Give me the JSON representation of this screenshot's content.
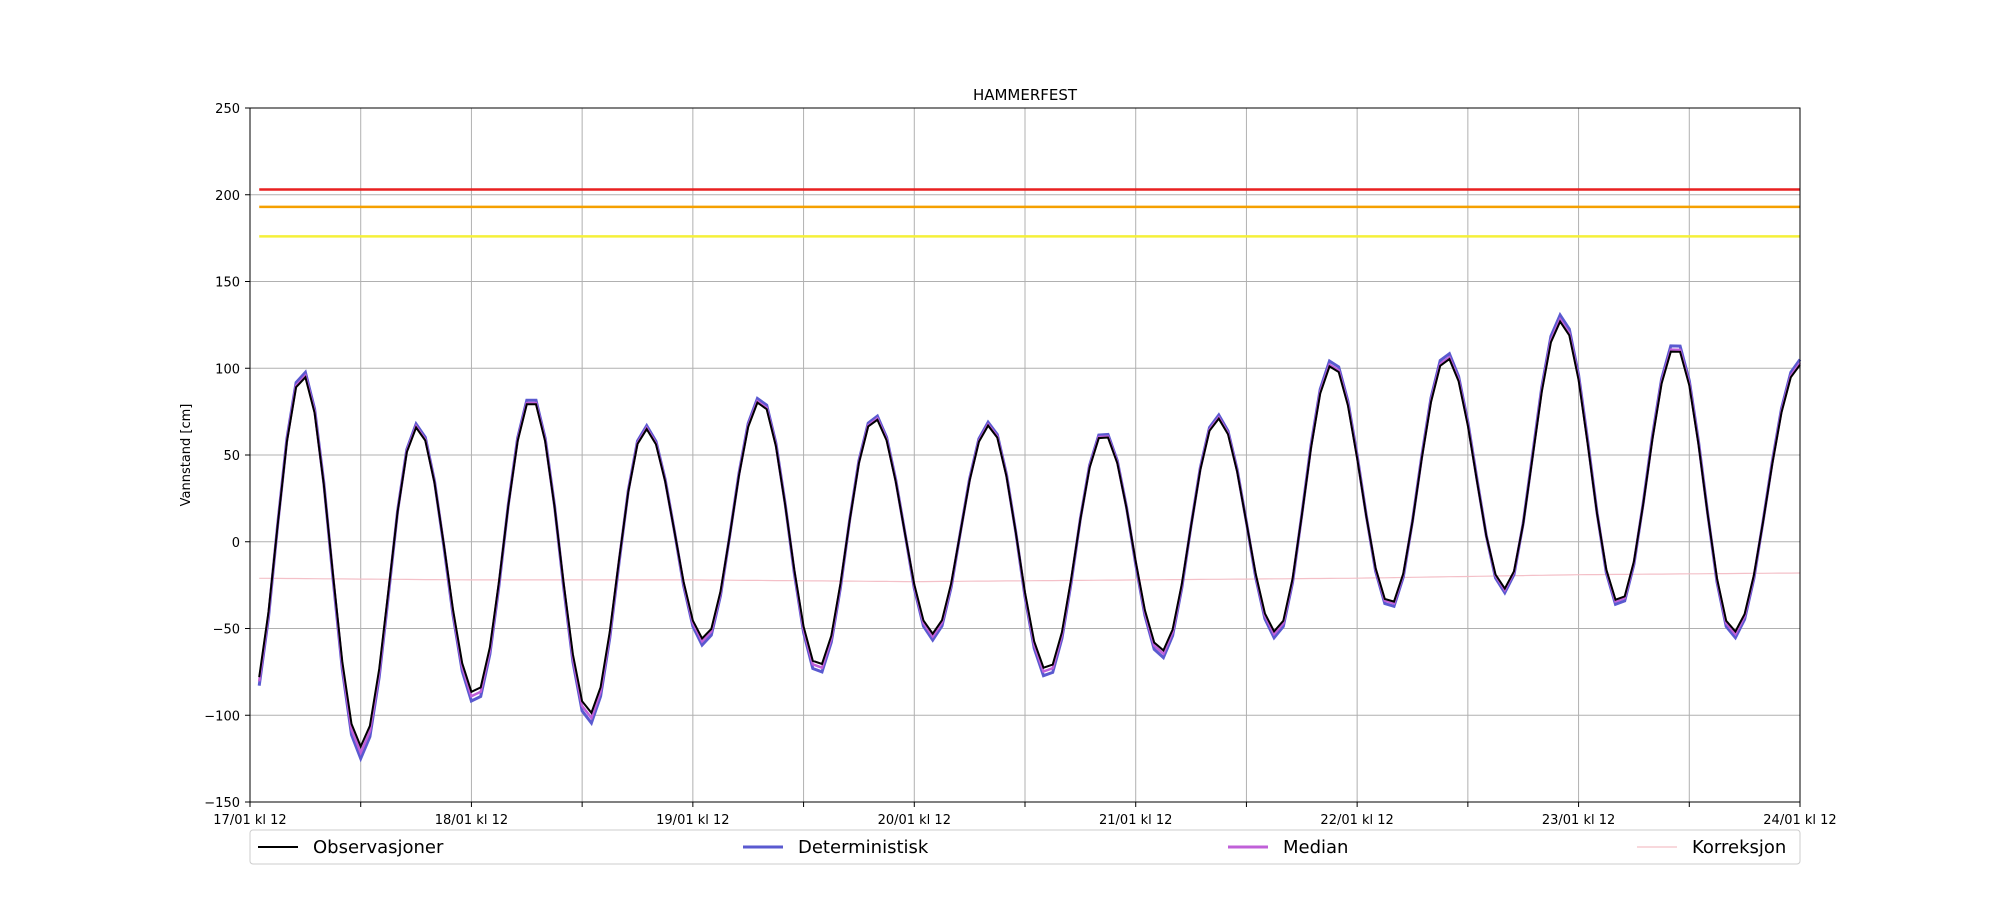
{
  "chart_data": {
    "type": "line",
    "title": "HAMMERFEST",
    "xlabel": "",
    "ylabel": "Vannstand [cm]",
    "ylim": [
      -150,
      250
    ],
    "yticks": [
      -150,
      -100,
      -50,
      0,
      50,
      100,
      150,
      200,
      250
    ],
    "ytick_labels": [
      "−150",
      "−100",
      "−50",
      "0",
      "50",
      "100",
      "150",
      "200",
      "250"
    ],
    "x_range_hours": [
      0,
      168
    ],
    "xtick_labels": [
      "17/01 kl 12",
      "18/01 kl 12",
      "19/01 kl 12",
      "20/01 kl 12",
      "21/01 kl 12",
      "22/01 kl 12",
      "23/01 kl 12",
      "24/01 kl 12"
    ],
    "grid": true,
    "legend_position": "bottom",
    "thresholds": [
      {
        "value": 203,
        "color": "#e82020"
      },
      {
        "value": 193,
        "color": "#f5a000"
      },
      {
        "value": 176,
        "color": "#f5f03a"
      }
    ],
    "tide": {
      "period_hours": 12.42,
      "peaks": [
        {
          "t": 5.7,
          "v": 96
        },
        {
          "t": 18.1,
          "v": 66
        },
        {
          "t": 30.5,
          "v": 82
        },
        {
          "t": 42.9,
          "v": 65
        },
        {
          "t": 55.3,
          "v": 81
        },
        {
          "t": 67.7,
          "v": 71
        },
        {
          "t": 80.1,
          "v": 67
        },
        {
          "t": 92.5,
          "v": 62
        },
        {
          "t": 104.9,
          "v": 71
        },
        {
          "t": 117.3,
          "v": 102
        },
        {
          "t": 129.7,
          "v": 106
        },
        {
          "t": 142.1,
          "v": 127
        },
        {
          "t": 154.5,
          "v": 112
        }
      ],
      "troughs": [
        {
          "t": 0,
          "v": -92
        },
        {
          "t": 12.0,
          "v": -118
        },
        {
          "t": 24.4,
          "v": -88
        },
        {
          "t": 36.8,
          "v": -99
        },
        {
          "t": 49.2,
          "v": -56
        },
        {
          "t": 61.6,
          "v": -72
        },
        {
          "t": 74.0,
          "v": -53
        },
        {
          "t": 86.4,
          "v": -74
        },
        {
          "t": 98.8,
          "v": -63
        },
        {
          "t": 111.2,
          "v": -52
        },
        {
          "t": 123.6,
          "v": -36
        },
        {
          "t": 136.0,
          "v": -27
        },
        {
          "t": 148.4,
          "v": -35
        },
        {
          "t": 160.8,
          "v": -52
        }
      ],
      "end": {
        "t": 168,
        "v": 102
      }
    },
    "correction": {
      "x": [
        0,
        24,
        48,
        72,
        96,
        120,
        144,
        168
      ],
      "values": [
        -21,
        -22,
        -22,
        -23,
        -22,
        -21,
        -19,
        -18
      ]
    },
    "series": [
      {
        "name": "Observasjoner",
        "color": "#000000"
      },
      {
        "name": "Deterministisk",
        "color": "#5a5ad0"
      },
      {
        "name": "Median",
        "color": "#c060d8"
      },
      {
        "name": "Korreksjon",
        "color": "#f4c0c8"
      }
    ]
  }
}
